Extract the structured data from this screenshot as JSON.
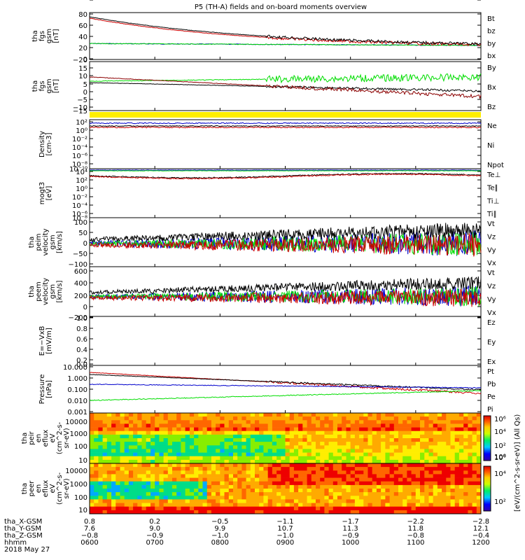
{
  "title": "P5 (TH-A) fields and on-board moments overview",
  "colors": {
    "black": "#000000",
    "red": "#cc0000",
    "green": "#00dd00",
    "blue": "#0000cc",
    "yellow": "#ffee00",
    "darkred": "#8b0000"
  },
  "chart_data": [
    {
      "type": "line",
      "id": "fgs_mag",
      "ylabel": [
        "tha",
        "fgs",
        "gsm",
        "[nT]"
      ],
      "yticks": [
        "80",
        "60",
        "40",
        "20",
        "0",
        "−20"
      ],
      "ylim": [
        -20,
        80
      ],
      "legend": [
        {
          "name": "Bt",
          "color": "#000000"
        },
        {
          "name": "bz",
          "color": "#cc0000"
        },
        {
          "name": "by",
          "color": "#00dd00"
        },
        {
          "name": "bx",
          "color": "#0000cc"
        }
      ]
    },
    {
      "type": "line",
      "id": "fgs_e",
      "ylabel": [
        "tha",
        "fgs",
        "gsm",
        "[nT]"
      ],
      "yticks": [
        "15",
        "10",
        "5",
        "0",
        "−5",
        "−10",
        "−15",
        "−20"
      ],
      "ylim": [
        -20,
        15
      ],
      "legend": [
        {
          "name": "By",
          "color": "#00dd00"
        },
        {
          "name": "Bx",
          "color": "#000000"
        },
        {
          "name": "Bz",
          "color": "#8b0000"
        }
      ]
    },
    {
      "type": "bar",
      "id": "flag",
      "color": "#ffee00"
    },
    {
      "type": "line",
      "id": "density",
      "ylabel": [
        "Density",
        "[cm-3]"
      ],
      "scale": "log",
      "yticks": [
        "10²",
        "10⁰",
        "10⁻²",
        "10⁻⁴",
        "10⁻⁶",
        "10⁻⁸",
        "10⁻¹⁰",
        "10⁻¹²"
      ],
      "legend": [
        {
          "name": "Ne",
          "color": "#cc0000"
        },
        {
          "name": "Ni",
          "color": "#000000"
        },
        {
          "name": "Npot",
          "color": "#0000cc"
        }
      ]
    },
    {
      "type": "line",
      "id": "temp",
      "ylabel": [
        "mogt3",
        "[eV]"
      ],
      "scale": "log",
      "yticks": [
        "10⁴",
        "10²",
        "10⁰",
        "10⁻²",
        "10⁻⁴",
        "10⁻⁶",
        "10⁻⁸"
      ],
      "legend": [
        {
          "name": "Te⊥",
          "color": "#cc0000"
        },
        {
          "name": "Te∥",
          "color": "#000000"
        },
        {
          "name": "Ti⊥",
          "color": "#0000cc"
        },
        {
          "name": "Ti∥",
          "color": "#00dd00"
        }
      ]
    },
    {
      "type": "line",
      "id": "peim_v",
      "ylabel": [
        "tha",
        "peim",
        "velocity",
        "gsm",
        "[km/s]"
      ],
      "yticks": [
        "100",
        "50",
        "0",
        "−50",
        "−100"
      ],
      "ylim": [
        -100,
        100
      ],
      "legend": [
        {
          "name": "Vt",
          "color": "#000000"
        },
        {
          "name": "Vz",
          "color": "#cc0000"
        },
        {
          "name": "Vy",
          "color": "#00dd00"
        },
        {
          "name": "Vx",
          "color": "#0000cc"
        }
      ]
    },
    {
      "type": "line",
      "id": "peem_v",
      "ylabel": [
        "tha",
        "peem",
        "velocity",
        "gsm",
        "[km/s]"
      ],
      "yticks": [
        "600",
        "400",
        "200",
        "0",
        "−200",
        "−400"
      ],
      "ylim": [
        -400,
        600
      ],
      "legend": [
        {
          "name": "Vt",
          "color": "#000000"
        },
        {
          "name": "Vz",
          "color": "#cc0000"
        },
        {
          "name": "Vy",
          "color": "#00dd00"
        },
        {
          "name": "Vx",
          "color": "#0000cc"
        }
      ]
    },
    {
      "type": "line",
      "id": "efield",
      "ylabel": [
        "E=−VxB",
        "[mV/m]"
      ],
      "yticks": [
        "1.0",
        "0.8",
        "0.6",
        "0.4",
        "0.2",
        "0.0"
      ],
      "ylim": [
        0,
        1
      ],
      "legend": [
        {
          "name": "Ez",
          "color": "#cc0000"
        },
        {
          "name": "Ey",
          "color": "#00dd00"
        },
        {
          "name": "Ex",
          "color": "#0000cc"
        }
      ]
    },
    {
      "type": "line",
      "id": "pressure",
      "ylabel": [
        "Pressure",
        "[nPa]"
      ],
      "scale": "log",
      "yticks": [
        "10.000",
        "1.000",
        "0.100",
        "0.010",
        "0.001"
      ],
      "legend": [
        {
          "name": "Pt",
          "color": "#000000"
        },
        {
          "name": "Pb",
          "color": "#cc0000"
        },
        {
          "name": "Pe",
          "color": "#00dd00"
        },
        {
          "name": "Pi",
          "color": "#0000cc"
        }
      ]
    },
    {
      "type": "heatmap",
      "id": "peir",
      "ylabel": [
        "tha",
        "peir",
        "en",
        "eflux",
        "eV",
        "(cm^2-s-",
        "sr-eV)"
      ],
      "yticks": [
        "10000",
        "1000",
        "100",
        "10"
      ],
      "cbar_ticks": [
        "10⁶",
        "10⁴",
        "10²",
        "10⁰"
      ]
    },
    {
      "type": "heatmap",
      "id": "peer",
      "ylabel": [
        "tha",
        "peer",
        "en",
        "eflux",
        "eV",
        "(cm^2-s-",
        "sr-eV)"
      ],
      "yticks": [
        "10000",
        "1000",
        "100",
        "10"
      ],
      "cbar_ticks": [
        "10⁶",
        "10⁴",
        "10²"
      ]
    }
  ],
  "colorbar_label": "[eV/(cm^2-s-sr-eV)] (All Qs)",
  "x_axis": {
    "row_labels": [
      "tha_X-GSM",
      "tha_Y-GSM",
      "tha_Z-GSM",
      "hhmm",
      "2018 May 27"
    ],
    "columns": [
      {
        "x": "0.8",
        "y": "7.6",
        "z": "−0.8",
        "t": "0600"
      },
      {
        "x": "0.2",
        "y": "9.0",
        "z": "−0.9",
        "t": "0700"
      },
      {
        "x": "−0.5",
        "y": "9.9",
        "z": "−1.0",
        "t": "0800"
      },
      {
        "x": "−1.1",
        "y": "10.7",
        "z": "−1.0",
        "t": "0900"
      },
      {
        "x": "−1.7",
        "y": "11.3",
        "z": "−0.9",
        "t": "1000"
      },
      {
        "x": "−2.2",
        "y": "11.8",
        "z": "−0.8",
        "t": "1100"
      },
      {
        "x": "−2.8",
        "y": "12.1",
        "z": "−0.4",
        "t": "1200"
      }
    ]
  }
}
